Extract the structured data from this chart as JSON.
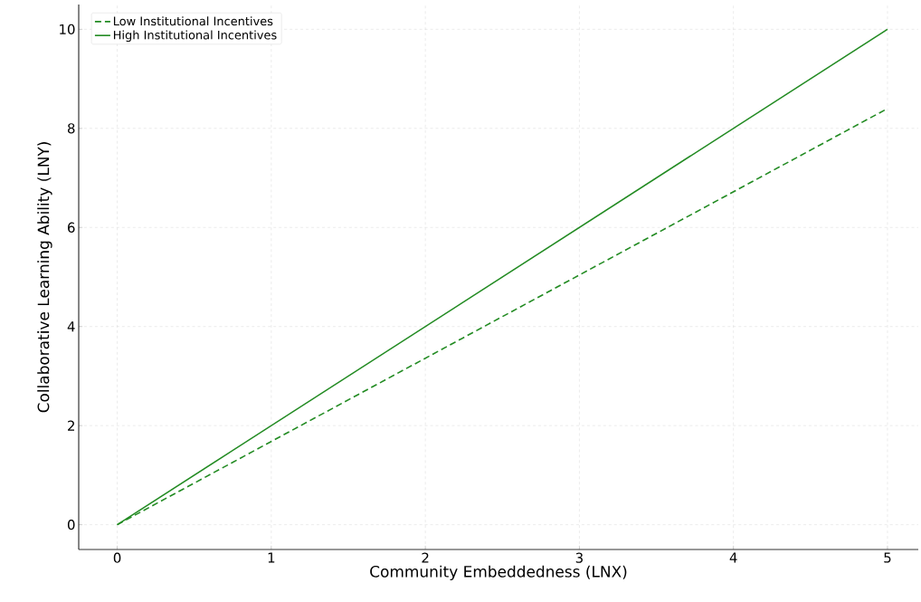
{
  "chart_data": {
    "type": "line",
    "xlabel": "Community Embeddedness (LNX)",
    "ylabel": "Collaborative Learning Ability (LNY)",
    "x": [
      0,
      5
    ],
    "series": [
      {
        "name": "Low Institutional Incentives",
        "color": "#228b22",
        "line_style": "dashed",
        "values": [
          0,
          8.4
        ]
      },
      {
        "name": "High Institutional Incentives",
        "color": "#228b22",
        "line_style": "solid",
        "values": [
          0,
          10
        ]
      }
    ],
    "xlim": [
      -0.25,
      5.2
    ],
    "ylim": [
      -0.5,
      10.5
    ],
    "xticks": [
      0,
      1,
      2,
      3,
      4,
      5
    ],
    "yticks": [
      0,
      2,
      4,
      6,
      8,
      10
    ],
    "grid": true,
    "legend": "top left"
  }
}
